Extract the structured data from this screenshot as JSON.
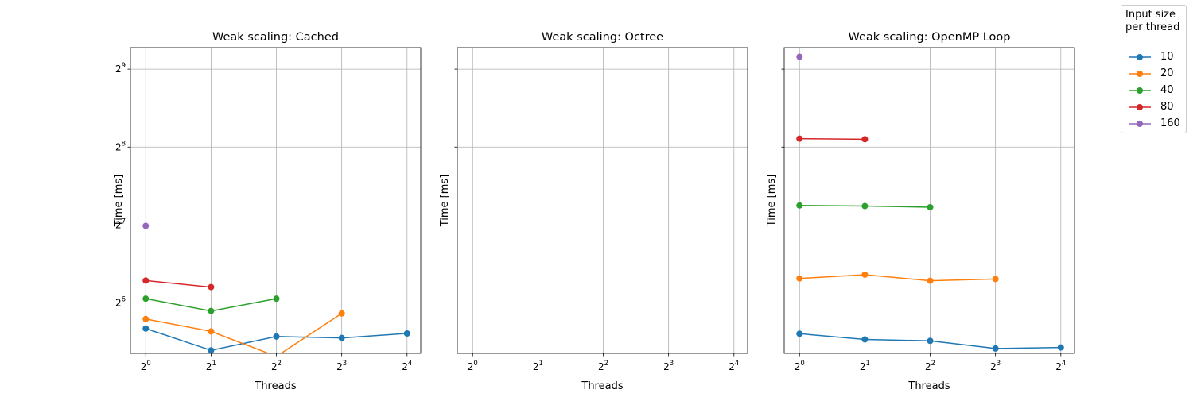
{
  "colors": {
    "10": "#1f77b4",
    "20": "#ff7f0e",
    "40": "#2ca02c",
    "80": "#d62728",
    "160": "#9467bd",
    "grid": "#b0b0b0",
    "axis": "#000000"
  },
  "legend": {
    "title": "Input size per thread",
    "placement": "right-outside-top",
    "entries": [
      "10",
      "20",
      "40",
      "80",
      "160"
    ]
  },
  "chart_data": [
    {
      "type": "line",
      "title": "Weak scaling: Cached",
      "xlabel": "Threads",
      "ylabel": "Time [ms]",
      "xscale": "log2",
      "yscale": "log2",
      "xticks": [
        1,
        2,
        4,
        8,
        16
      ],
      "yticks": [
        64,
        128,
        256,
        512
      ],
      "xlim": [
        0.85,
        18.5
      ],
      "ylim": [
        40.9,
        620
      ],
      "grid": true,
      "series": [
        {
          "name": "10",
          "x": [
            1,
            2,
            4,
            8,
            16
          ],
          "y": [
            51.0,
            42.0,
            47.5,
            46.9,
            48.8
          ]
        },
        {
          "name": "20",
          "x": [
            1,
            2,
            4,
            8
          ],
          "y": [
            55.5,
            49.7,
            39.8,
            58.3
          ]
        },
        {
          "name": "40",
          "x": [
            1,
            2,
            4
          ],
          "y": [
            66.5,
            59.6,
            66.5
          ]
        },
        {
          "name": "80",
          "x": [
            1,
            2
          ],
          "y": [
            78.1,
            73.7
          ]
        },
        {
          "name": "160",
          "x": [
            1
          ],
          "y": [
            127.0
          ]
        }
      ]
    },
    {
      "type": "line",
      "title": "Weak scaling: Octree",
      "xlabel": "Threads",
      "ylabel": "Time [ms]",
      "xscale": "log2",
      "yscale": "log2",
      "xticks": [
        1,
        2,
        4,
        8,
        16
      ],
      "yticks": [
        64,
        128,
        256,
        512
      ],
      "xlim": [
        0.85,
        18.5
      ],
      "ylim": [
        40.9,
        620
      ],
      "grid": true,
      "series": []
    },
    {
      "type": "line",
      "title": "Weak scaling: OpenMP Loop",
      "xlabel": "Threads",
      "ylabel": "Time [ms]",
      "xscale": "log2",
      "yscale": "log2",
      "xticks": [
        1,
        2,
        4,
        8,
        16
      ],
      "yticks": [
        64,
        128,
        256,
        512
      ],
      "xlim": [
        0.85,
        18.5
      ],
      "ylim": [
        40.9,
        620
      ],
      "grid": true,
      "series": [
        {
          "name": "10",
          "x": [
            1,
            2,
            4,
            8,
            16
          ],
          "y": [
            48.7,
            46.3,
            45.7,
            42.7,
            43.1
          ]
        },
        {
          "name": "20",
          "x": [
            1,
            2,
            4,
            8
          ],
          "y": [
            79.6,
            82.3,
            78.0,
            79.2
          ]
        },
        {
          "name": "40",
          "x": [
            1,
            2,
            4
          ],
          "y": [
            152.3,
            151.5,
            150.0
          ]
        },
        {
          "name": "80",
          "x": [
            1,
            2
          ],
          "y": [
            276.0,
            274.6
          ]
        },
        {
          "name": "160",
          "x": [
            1
          ],
          "y": [
            571.5
          ]
        }
      ]
    }
  ]
}
